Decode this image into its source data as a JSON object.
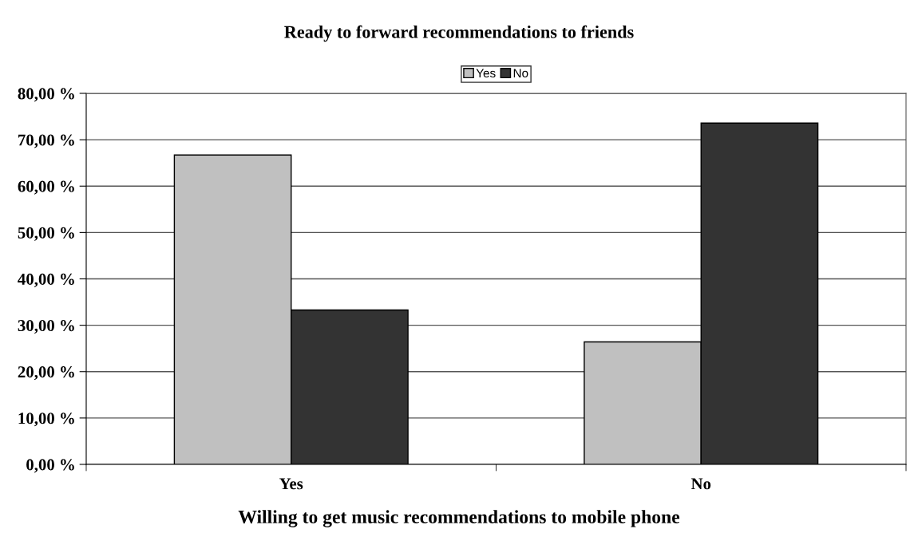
{
  "chart_data": {
    "type": "bar",
    "title": "Ready to forward recommendations to friends",
    "xlabel": "Willing to get music recommendations to mobile phone",
    "categories": [
      "Yes",
      "No"
    ],
    "series": [
      {
        "name": "Yes",
        "color": "#c0c0c0",
        "values": [
          66.7,
          26.4
        ]
      },
      {
        "name": "No",
        "color": "#333333",
        "values": [
          33.3,
          73.6
        ]
      }
    ],
    "ylim": [
      0,
      80
    ],
    "yticks": [
      {
        "value": 0,
        "label": "0,00 %"
      },
      {
        "value": 10,
        "label": "10,00 %"
      },
      {
        "value": 20,
        "label": "20,00 %"
      },
      {
        "value": 30,
        "label": "30,00 %"
      },
      {
        "value": 40,
        "label": "40,00 %"
      },
      {
        "value": 50,
        "label": "50,00 %"
      },
      {
        "value": 60,
        "label": "60,00 %"
      },
      {
        "value": 70,
        "label": "70,00 %"
      },
      {
        "value": 80,
        "label": "80,00 %"
      }
    ],
    "grid": "y",
    "legend": "top"
  }
}
